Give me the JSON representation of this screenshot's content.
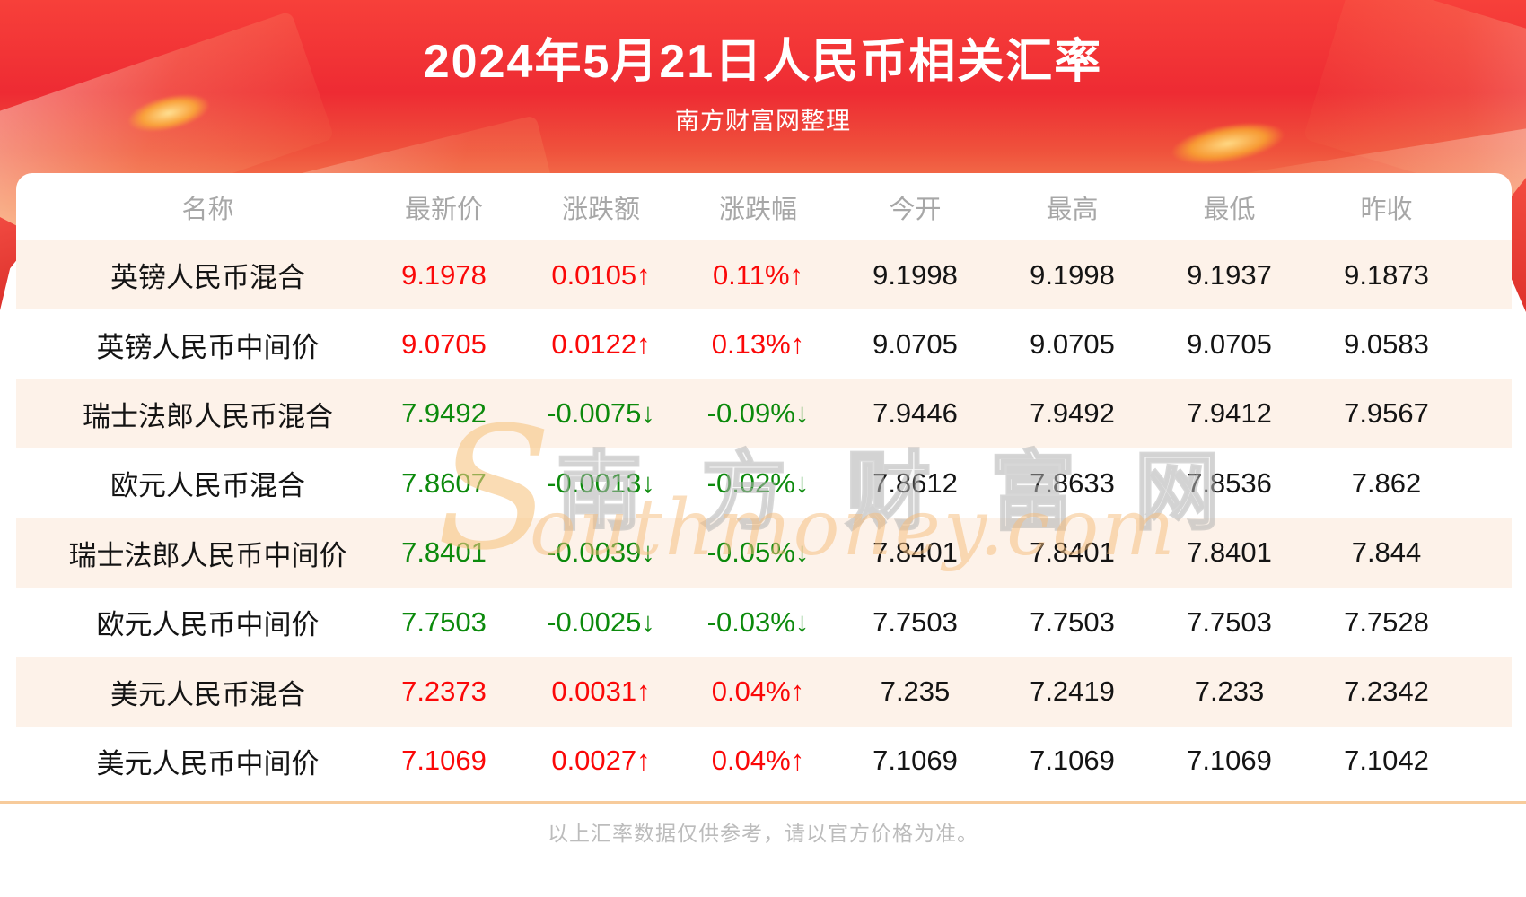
{
  "banner": {
    "title": "2024年5月21日人民币相关汇率",
    "subtitle": "南方财富网整理"
  },
  "chart_data": {
    "type": "table",
    "title": "2024年5月21日人民币相关汇率",
    "columns": [
      "名称",
      "最新价",
      "涨跌额",
      "涨跌幅",
      "今开",
      "最高",
      "最低",
      "昨收"
    ],
    "rows": [
      {
        "name": "英镑人民币混合",
        "latest": "9.1978",
        "change": "0.0105↑",
        "change_pct": "0.11%↑",
        "open": "9.1998",
        "high": "9.1998",
        "low": "9.1937",
        "prev_close": "9.1873",
        "trend": "up"
      },
      {
        "name": "英镑人民币中间价",
        "latest": "9.0705",
        "change": "0.0122↑",
        "change_pct": "0.13%↑",
        "open": "9.0705",
        "high": "9.0705",
        "low": "9.0705",
        "prev_close": "9.0583",
        "trend": "up"
      },
      {
        "name": "瑞士法郎人民币混合",
        "latest": "7.9492",
        "change": "-0.0075↓",
        "change_pct": "-0.09%↓",
        "open": "7.9446",
        "high": "7.9492",
        "low": "7.9412",
        "prev_close": "7.9567",
        "trend": "down"
      },
      {
        "name": "欧元人民币混合",
        "latest": "7.8607",
        "change": "-0.0013↓",
        "change_pct": "-0.02%↓",
        "open": "7.8612",
        "high": "7.8633",
        "low": "7.8536",
        "prev_close": "7.862",
        "trend": "down"
      },
      {
        "name": "瑞士法郎人民币中间价",
        "latest": "7.8401",
        "change": "-0.0039↓",
        "change_pct": "-0.05%↓",
        "open": "7.8401",
        "high": "7.8401",
        "low": "7.8401",
        "prev_close": "7.844",
        "trend": "down"
      },
      {
        "name": "欧元人民币中间价",
        "latest": "7.7503",
        "change": "-0.0025↓",
        "change_pct": "-0.03%↓",
        "open": "7.7503",
        "high": "7.7503",
        "low": "7.7503",
        "prev_close": "7.7528",
        "trend": "down"
      },
      {
        "name": "美元人民币混合",
        "latest": "7.2373",
        "change": "0.0031↑",
        "change_pct": "0.04%↑",
        "open": "7.235",
        "high": "7.2419",
        "low": "7.233",
        "prev_close": "7.2342",
        "trend": "up"
      },
      {
        "name": "美元人民币中间价",
        "latest": "7.1069",
        "change": "0.0027↑",
        "change_pct": "0.04%↑",
        "open": "7.1069",
        "high": "7.1069",
        "low": "7.1069",
        "prev_close": "7.1042",
        "trend": "up"
      }
    ]
  },
  "watermark": {
    "cn": "南方财富网",
    "en_initial": "S",
    "en_rest": "outhmoney.com"
  },
  "footer": {
    "note": "以上汇率数据仅供参考，请以官方价格为准。"
  },
  "colors": {
    "up_text": "#fb0808",
    "down_text": "#0c8a0c",
    "banner_red": "#ee2b33",
    "row_alt_bg": "#fdf2e9",
    "divider": "#f7cb9b"
  }
}
